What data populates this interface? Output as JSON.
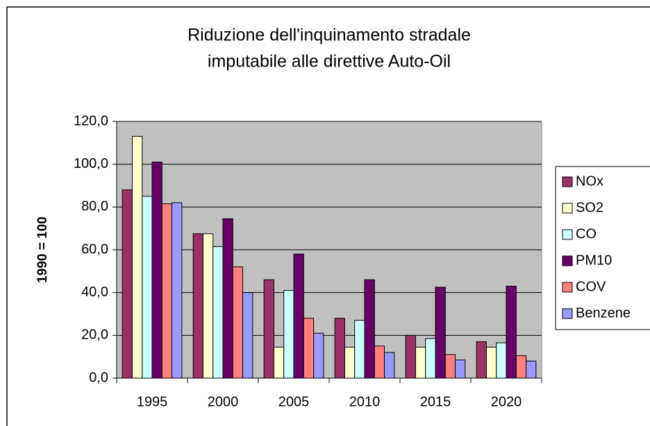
{
  "chart_data": {
    "type": "bar",
    "title": [
      "Riduzione dell'inquinamento stradale",
      "imputabile alle direttive Auto-Oil"
    ],
    "y_label": "1990 = 100",
    "categories": [
      "1995",
      "2000",
      "2005",
      "2010",
      "2015",
      "2020"
    ],
    "series": [
      {
        "name": "NOx",
        "color": "#993366",
        "values": [
          88,
          67.5,
          46,
          28,
          20,
          17
        ]
      },
      {
        "name": "SO2",
        "color": "#ffffcc",
        "values": [
          113,
          67.5,
          14.5,
          14.5,
          14.5,
          14.5
        ]
      },
      {
        "name": "CO",
        "color": "#ccffff",
        "values": [
          85,
          61.5,
          41,
          27,
          18.5,
          16.5
        ]
      },
      {
        "name": "PM10",
        "color": "#660066",
        "values": [
          101,
          74.5,
          58,
          46,
          42.5,
          43
        ]
      },
      {
        "name": "COV",
        "color": "#ff8080",
        "values": [
          81.5,
          52,
          28,
          15,
          11,
          10.5
        ]
      },
      {
        "name": "Benzene",
        "color": "#9999ff",
        "values": [
          82,
          40,
          21,
          12,
          8.5,
          8
        ]
      }
    ],
    "ylim": [
      0,
      120
    ],
    "yticks": [
      {
        "value": 0,
        "label": "0,0"
      },
      {
        "value": 20,
        "label": "20,0"
      },
      {
        "value": 40,
        "label": "40,0"
      },
      {
        "value": 60,
        "label": "60,0"
      },
      {
        "value": 80,
        "label": "80,0"
      },
      {
        "value": 100,
        "label": "100,0"
      },
      {
        "value": 120,
        "label": "120,0"
      }
    ],
    "grid": true,
    "legend": "right",
    "plot_background": "#c0c0c0"
  }
}
